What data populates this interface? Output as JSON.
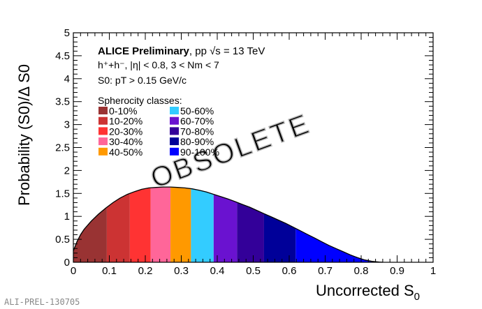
{
  "chart_data": {
    "type": "area",
    "xlabel": "Uncorrected S",
    "xlabel_sub": "0",
    "ylabel": "Probability (S0)/Δ S0",
    "xlim": [
      0,
      1
    ],
    "ylim": [
      0,
      5
    ],
    "xticks": [
      "0",
      "0.1",
      "0.2",
      "0.3",
      "0.4",
      "0.5",
      "0.6",
      "0.7",
      "0.8",
      "0.9",
      "1"
    ],
    "yticks": [
      "0",
      "0.5",
      "1",
      "1.5",
      "2",
      "2.5",
      "3",
      "3.5",
      "4",
      "4.5",
      "5"
    ],
    "grid": false,
    "annotations": {
      "line1_bold": "ALICE Preliminary",
      "line1_rest": ", pp √s = 13 TeV",
      "line2": "h⁺+h⁻, |η| < 0.8, 3 < Nm < 7",
      "line3": "S0: pT > 0.15 GeV/c"
    },
    "legend_title": "Spherocity classes:",
    "legend_placement": "top-left",
    "watermark": "OBSOLETE",
    "series": {
      "x": [
        0.0,
        0.01,
        0.02,
        0.03,
        0.05,
        0.07,
        0.09,
        0.11,
        0.13,
        0.15,
        0.17,
        0.19,
        0.21,
        0.23,
        0.25,
        0.27,
        0.29,
        0.31,
        0.33,
        0.35,
        0.37,
        0.39,
        0.41,
        0.43,
        0.45,
        0.47,
        0.49,
        0.51,
        0.53,
        0.55,
        0.57,
        0.59,
        0.61,
        0.63,
        0.65,
        0.67,
        0.69,
        0.71,
        0.73,
        0.75,
        0.77,
        0.79,
        0.81,
        0.83,
        0.85,
        0.86
      ],
      "y": [
        0.25,
        0.45,
        0.6,
        0.72,
        0.9,
        1.05,
        1.18,
        1.3,
        1.4,
        1.48,
        1.54,
        1.59,
        1.62,
        1.63,
        1.64,
        1.64,
        1.63,
        1.62,
        1.6,
        1.57,
        1.53,
        1.48,
        1.43,
        1.38,
        1.32,
        1.26,
        1.2,
        1.13,
        1.06,
        0.99,
        0.92,
        0.85,
        0.77,
        0.69,
        0.61,
        0.53,
        0.45,
        0.37,
        0.3,
        0.23,
        0.16,
        0.1,
        0.05,
        0.02,
        0.005,
        0.0
      ]
    },
    "classes": [
      {
        "label": "0-10%",
        "x0": 0.0,
        "x1": 0.093,
        "color": "#993333"
      },
      {
        "label": "10-20%",
        "x0": 0.093,
        "x1": 0.157,
        "color": "#cc3333"
      },
      {
        "label": "20-30%",
        "x0": 0.157,
        "x1": 0.215,
        "color": "#ff3333"
      },
      {
        "label": "30-40%",
        "x0": 0.215,
        "x1": 0.27,
        "color": "#ff6699"
      },
      {
        "label": "40-50%",
        "x0": 0.27,
        "x1": 0.327,
        "color": "#ff9900"
      },
      {
        "label": "50-60%",
        "x0": 0.327,
        "x1": 0.39,
        "color": "#33ccff"
      },
      {
        "label": "60-70%",
        "x0": 0.39,
        "x1": 0.455,
        "color": "#6a12d0"
      },
      {
        "label": "70-80%",
        "x0": 0.455,
        "x1": 0.53,
        "color": "#330099"
      },
      {
        "label": "80-90%",
        "x0": 0.53,
        "x1": 0.618,
        "color": "#000099"
      },
      {
        "label": "90-100%",
        "x0": 0.618,
        "x1": 0.86,
        "color": "#0000ff"
      }
    ]
  },
  "footer": {
    "figure_id": "ALI-PREL-130705"
  }
}
